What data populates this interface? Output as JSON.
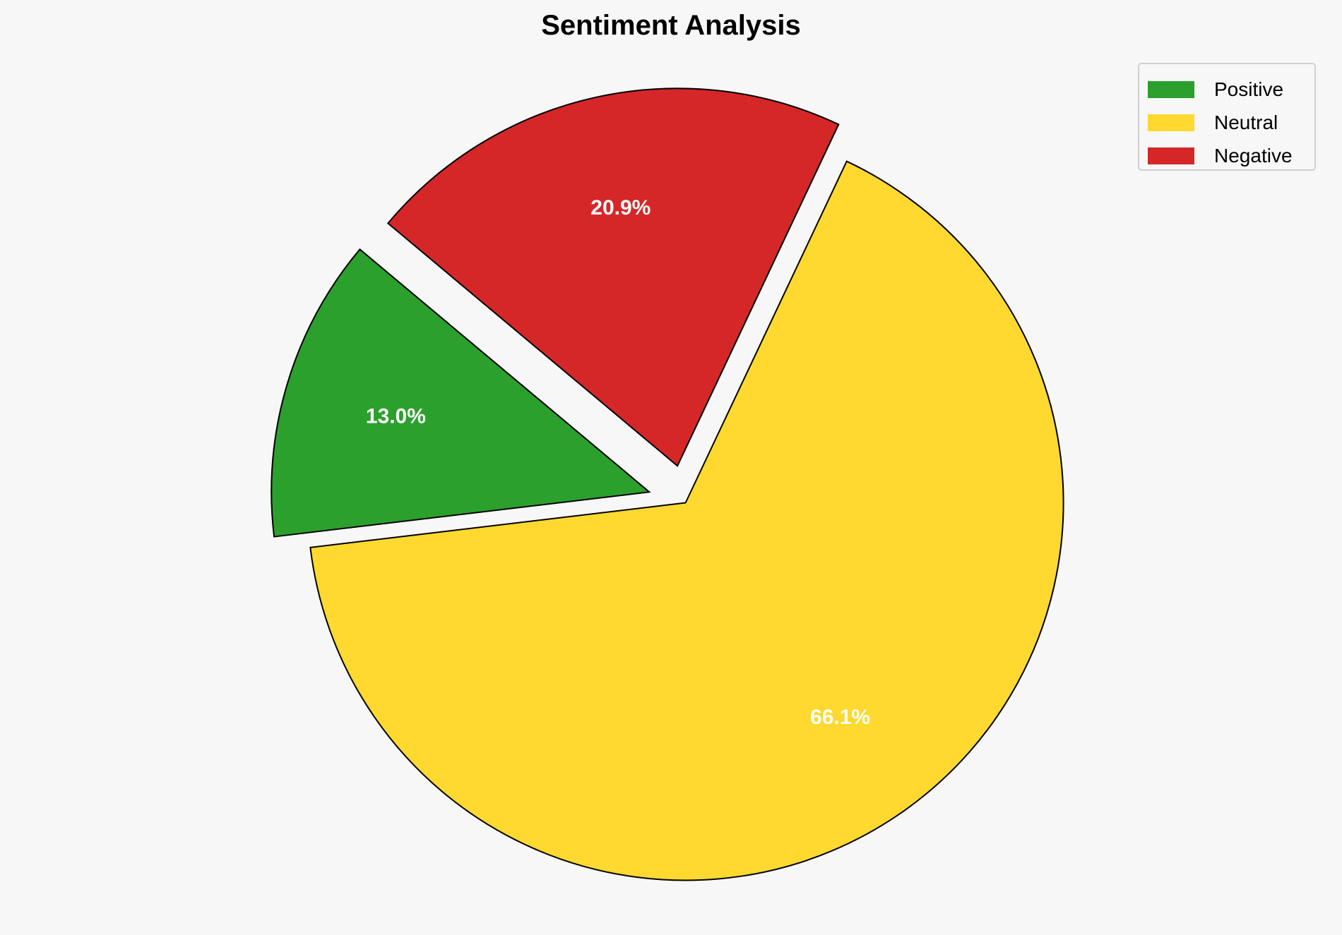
{
  "chart_data": {
    "type": "pie",
    "title": "Sentiment Analysis",
    "categories": [
      "Positive",
      "Neutral",
      "Negative"
    ],
    "values": [
      13.0,
      66.1,
      20.9
    ],
    "labels": [
      "13.0%",
      "66.1%",
      "20.9%"
    ],
    "colors": [
      "#2ca02c",
      "#ffd92f",
      "#d62728"
    ],
    "explode": [
      0.1,
      0,
      0.1
    ],
    "start_angle": 140,
    "legend_position": "top-right"
  }
}
